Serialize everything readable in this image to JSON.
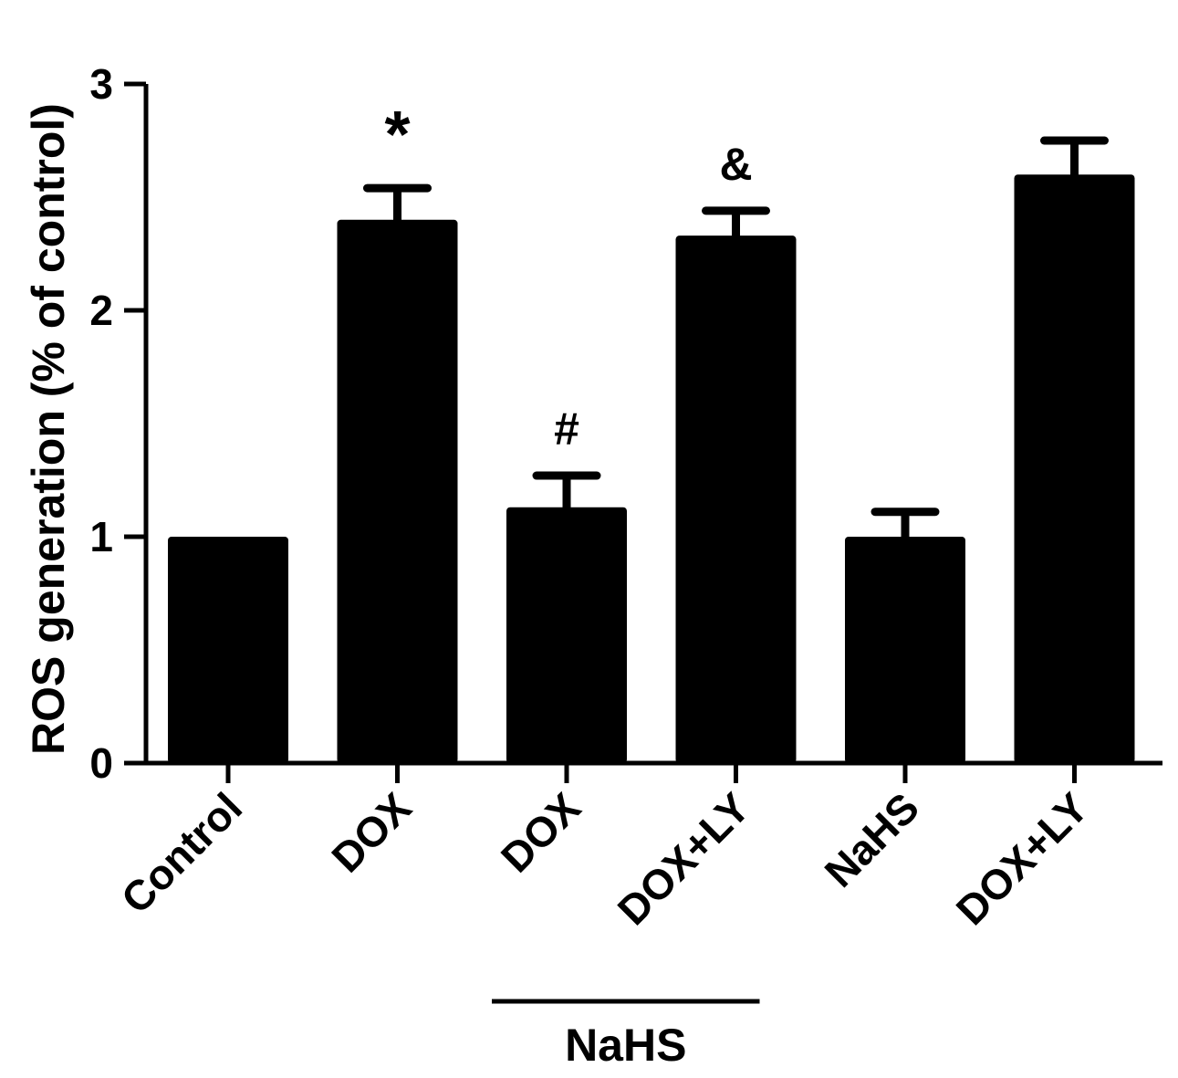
{
  "chart_data": {
    "type": "bar",
    "title": "",
    "xlabel": "",
    "ylabel": "ROS  generation (% of control)",
    "ylim": [
      0,
      3
    ],
    "y_ticks": [
      "0",
      "1",
      "2",
      "3"
    ],
    "categories": [
      "Control",
      "DOX",
      "DOX",
      "DOX+LY",
      "NaHS",
      "DOX+LY"
    ],
    "values": [
      1.0,
      2.4,
      1.13,
      2.33,
      1.0,
      2.6
    ],
    "errors": [
      0.0,
      0.14,
      0.14,
      0.11,
      0.11,
      0.15
    ],
    "significance": [
      "",
      "*",
      "#",
      "&",
      "",
      ""
    ],
    "group_bracket": {
      "label": "NaHS",
      "from_index": 2,
      "to_index": 3
    },
    "bar_color": "#000000",
    "grid": false,
    "legend": "none"
  }
}
